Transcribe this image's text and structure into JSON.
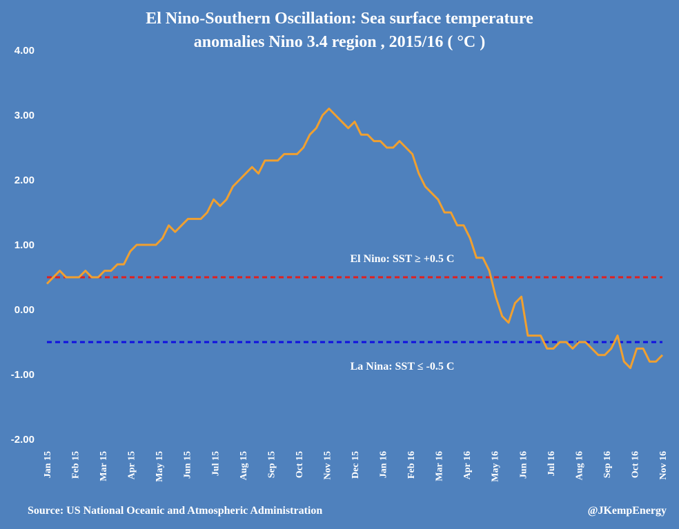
{
  "chart_data": {
    "type": "line",
    "title_lines": [
      "El Nino-Southern Oscillation: Sea surface temperature",
      "anomalies Nino 3.4 region , 2015/16 ( °C )"
    ],
    "ylim": [
      -2.0,
      4.0
    ],
    "yticks": [
      "4.00",
      "3.00",
      "2.00",
      "1.00",
      "0.00",
      "-1.00",
      "-2.00"
    ],
    "ytick_values": [
      4,
      3,
      2,
      1,
      0,
      -1,
      -2
    ],
    "xtick_labels": [
      "Jan 15",
      "Feb 15",
      "Mar 15",
      "Apr 15",
      "May 15",
      "Jun 15",
      "Jul 15",
      "Aug 15",
      "Sep 15",
      "Oct 15",
      "Nov 15",
      "Dec 15",
      "Jan 16",
      "Feb 16",
      "Mar 16",
      "Apr 16",
      "May 16",
      "Jun 16",
      "Jul 16",
      "Aug 16",
      "Sep 16",
      "Oct 16",
      "Nov 16"
    ],
    "grid": false,
    "series": [
      {
        "color": "#f0a030",
        "values": [
          0.4,
          0.5,
          0.6,
          0.5,
          0.5,
          0.5,
          0.6,
          0.5,
          0.5,
          0.6,
          0.6,
          0.7,
          0.7,
          0.9,
          1.0,
          1.0,
          1.0,
          1.0,
          1.1,
          1.3,
          1.2,
          1.3,
          1.4,
          1.4,
          1.4,
          1.5,
          1.7,
          1.6,
          1.7,
          1.9,
          2.0,
          2.1,
          2.2,
          2.1,
          2.3,
          2.3,
          2.3,
          2.4,
          2.4,
          2.4,
          2.5,
          2.7,
          2.8,
          3.0,
          3.1,
          3.0,
          2.9,
          2.8,
          2.9,
          2.7,
          2.7,
          2.6,
          2.6,
          2.5,
          2.5,
          2.6,
          2.5,
          2.4,
          2.1,
          1.9,
          1.8,
          1.7,
          1.5,
          1.5,
          1.3,
          1.3,
          1.1,
          0.8,
          0.8,
          0.6,
          0.2,
          -0.1,
          -0.2,
          0.1,
          0.2,
          -0.4,
          -0.4,
          -0.4,
          -0.6,
          -0.6,
          -0.5,
          -0.5,
          -0.6,
          -0.5,
          -0.5,
          -0.6,
          -0.7,
          -0.7,
          -0.6,
          -0.4,
          -0.8,
          -0.9,
          -0.6,
          -0.6,
          -0.8,
          -0.8,
          -0.7
        ]
      }
    ],
    "reference_lines": [
      {
        "value": 0.5,
        "color": "#e0201e",
        "label": "El Nino: SST ≥  +0.5 C"
      },
      {
        "value": -0.5,
        "color": "#1010e0",
        "label": "La Nina:  SST ≤ -0.5 C"
      }
    ]
  },
  "footer": {
    "source": "Source: US National Oceanic and Atmospheric Administration",
    "handle": "@JKempEnergy"
  }
}
